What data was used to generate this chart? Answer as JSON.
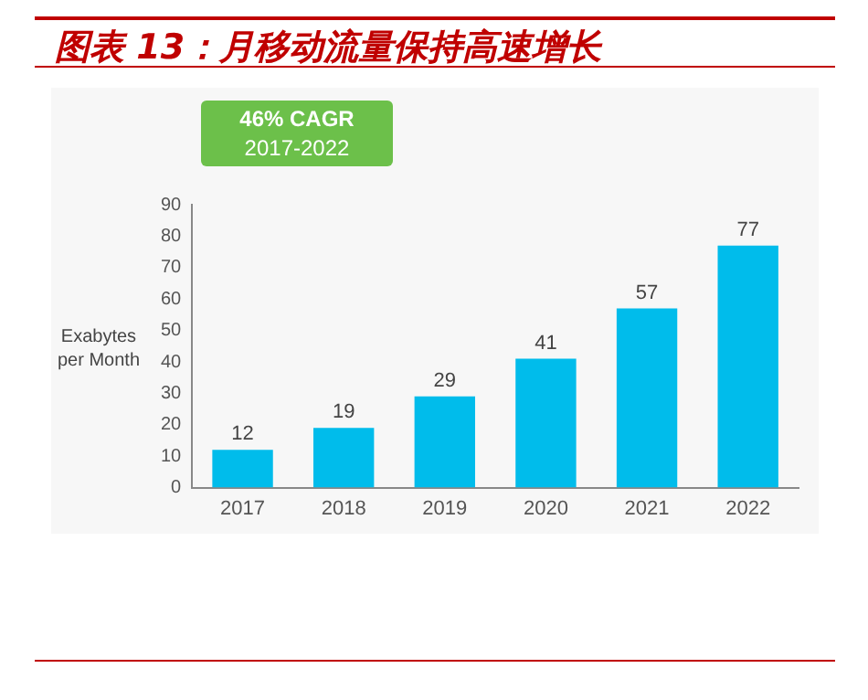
{
  "chart_data": {
    "type": "bar",
    "title": "图表 13：月移动流量保持高速增长",
    "ylabel": "Exabytes per Month",
    "annotations": [
      "46% CAGR",
      "2017-2022"
    ],
    "categories": [
      "2017",
      "2018",
      "2019",
      "2020",
      "2021",
      "2022"
    ],
    "values": [
      12,
      19,
      29,
      41,
      57,
      77
    ],
    "color": "#00bceb",
    "ylim": [
      0,
      90
    ],
    "yticks": [
      0,
      10,
      20,
      30,
      40,
      50,
      60,
      70,
      80,
      90
    ],
    "grid": false,
    "legend": false,
    "data_labels": true
  }
}
